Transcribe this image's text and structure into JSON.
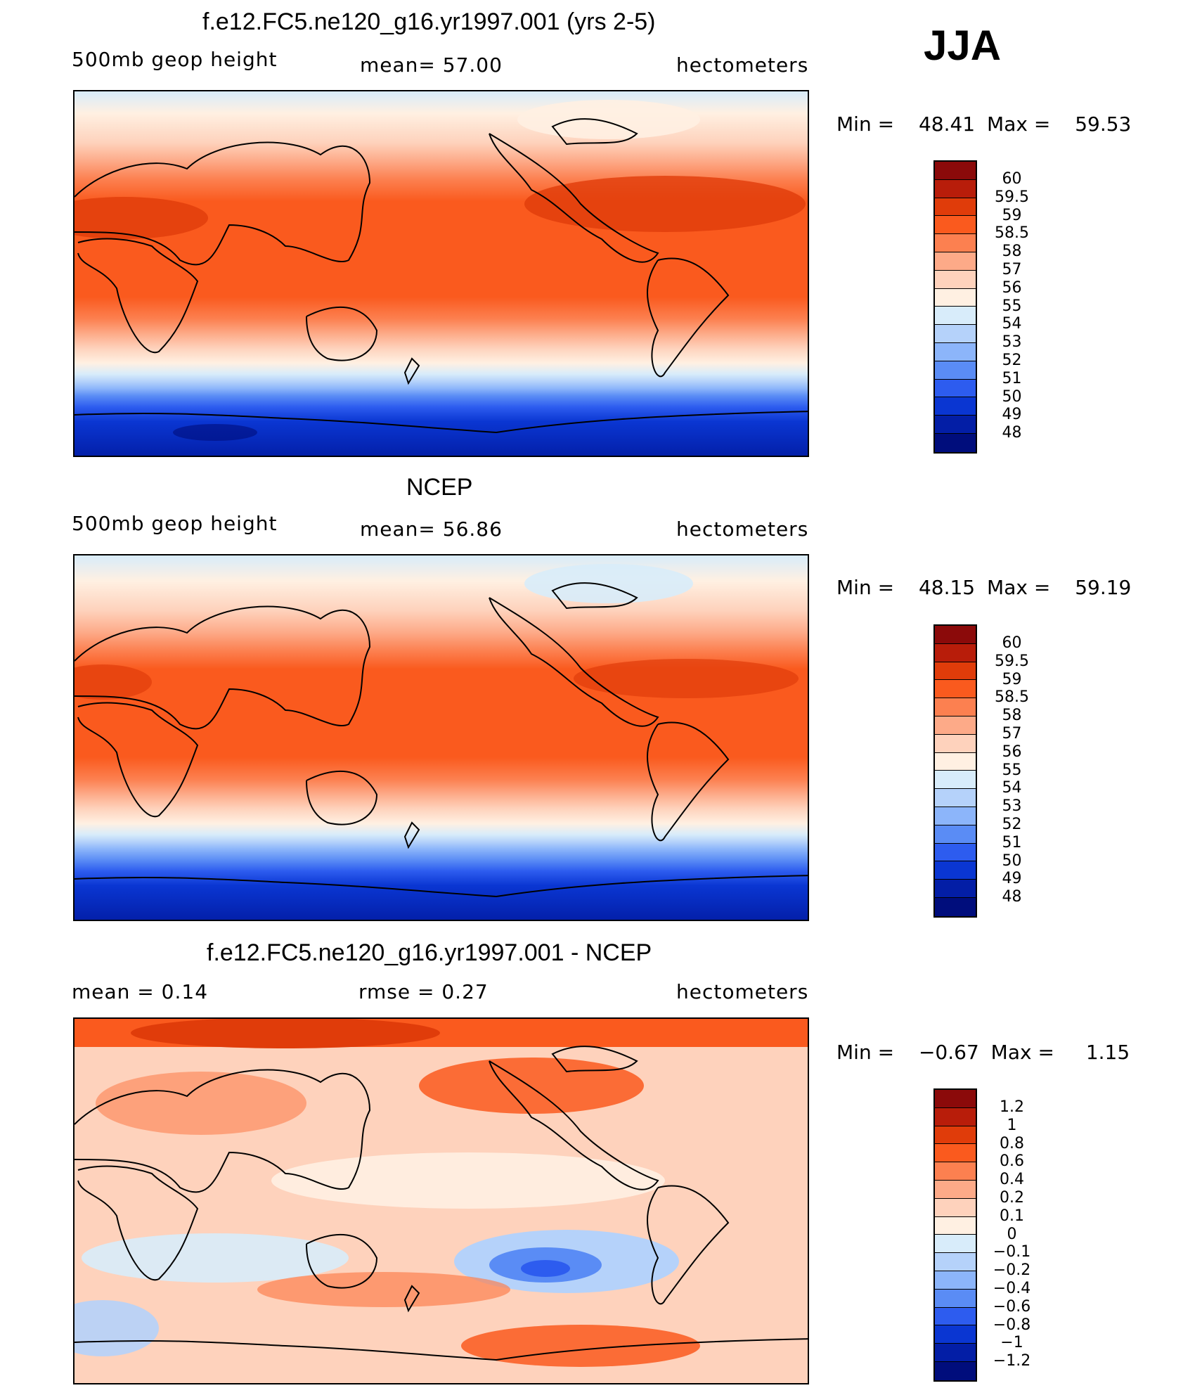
{
  "season": "JJA",
  "panels": [
    {
      "id": "model",
      "title": "f.e12.FC5.ne120_g16.yr1997.001 (yrs 2-5)",
      "left_label": "500mb  geop  height",
      "center_label": "mean=   57.00",
      "right_label": "hectometers",
      "min_label": "Min  =",
      "min_value": "48.41",
      "max_label": "Max  =",
      "max_value": "59.53",
      "levels": [
        "60",
        "59.5",
        "59",
        "58.5",
        "58",
        "57",
        "56",
        "55",
        "54",
        "53",
        "52",
        "51",
        "50",
        "49",
        "48"
      ]
    },
    {
      "id": "obs",
      "title": "NCEP",
      "left_label": "500mb  geop  height",
      "center_label": "mean=   56.86",
      "right_label": "hectometers",
      "min_label": "Min  =",
      "min_value": "48.15",
      "max_label": "Max  =",
      "max_value": "59.19",
      "levels": [
        "60",
        "59.5",
        "59",
        "58.5",
        "58",
        "57",
        "56",
        "55",
        "54",
        "53",
        "52",
        "51",
        "50",
        "49",
        "48"
      ]
    },
    {
      "id": "diff",
      "title": "f.e12.FC5.ne120_g16.yr1997.001 - NCEP",
      "left_label": "mean =     0.14",
      "center_label": "rmse =     0.27",
      "right_label": "hectometers",
      "min_label": "Min  =",
      "min_value": "−0.67",
      "max_label": "Max  =",
      "max_value": "1.15",
      "levels": [
        "1.2",
        "1",
        "0.8",
        "0.6",
        "0.4",
        "0.2",
        "0.1",
        "0",
        "−0.1",
        "−0.2",
        "−0.4",
        "−0.6",
        "−0.8",
        "−1",
        "−1.2"
      ]
    }
  ],
  "colorbar_colors": [
    "#8b0a0a",
    "#b81d0a",
    "#e03c0a",
    "#fa5a1e",
    "#fc8050",
    "#fdaa88",
    "#fed2bc",
    "#fff0e2",
    "#d8ecfa",
    "#b5d2fa",
    "#8cb5fa",
    "#5a8cf5",
    "#2d5cef",
    "#0a36d2",
    "#031ea6",
    "#000d7c"
  ]
}
